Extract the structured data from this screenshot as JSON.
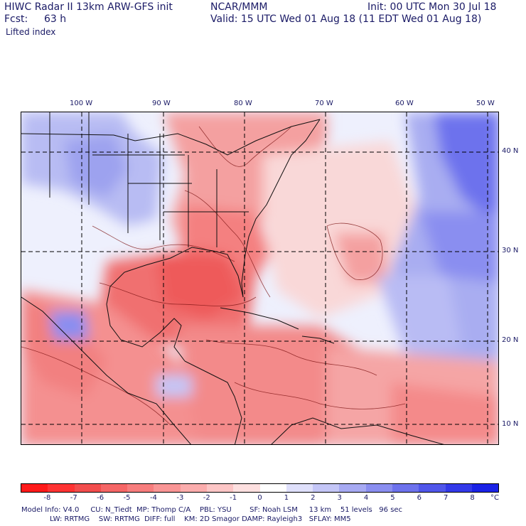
{
  "header": {
    "title_line1": "HIWC Radar II 13km ARW-GFS init",
    "source": "NCAR/MMM",
    "init": "Init: 00 UTC Mon 30 Jul 18",
    "fcst_label": "Fcst:",
    "fcst_value": "63 h",
    "valid": "Valid: 15 UTC Wed 01 Aug 18 (11 EDT Wed 01 Aug 18)",
    "field": "Lifted index"
  },
  "map": {
    "lon_labels": [
      "100 W",
      "90 W",
      "80 W",
      "70 W",
      "60 W",
      "50 W"
    ],
    "lat_labels": [
      "40 N",
      "30 N",
      "20 N",
      "10 N"
    ]
  },
  "legend": {
    "labels": [
      "-8",
      "-7",
      "-6",
      "-5",
      "-4",
      "-3",
      "-2",
      "-1",
      "0",
      "1",
      "2",
      "3",
      "4",
      "5",
      "6",
      "7",
      "8",
      "°C"
    ],
    "colors": [
      "#ff1a1a",
      "#ff3333",
      "#f24d4d",
      "#f56666",
      "#f77d7d",
      "#f99595",
      "#fbadad",
      "#fdc6c6",
      "#fee0e0",
      "#ffffff",
      "#dfe0fb",
      "#c4c6f7",
      "#a7aaf3",
      "#8a8ef0",
      "#6d72ed",
      "#5056ea",
      "#3339e8",
      "#1a22e6"
    ]
  },
  "footer": {
    "line1": "Model Info: V4.0     CU: N_Tiedt  MP: Thomp C/A    PBL: YSU        SF: Noah LSM     13 km    51 levels   96 sec",
    "line2": "LW: RRTMG    SW: RRTMG  DIFF: full    KM: 2D Smagor DAMP: Rayleigh3   SFLAY: MM5"
  }
}
